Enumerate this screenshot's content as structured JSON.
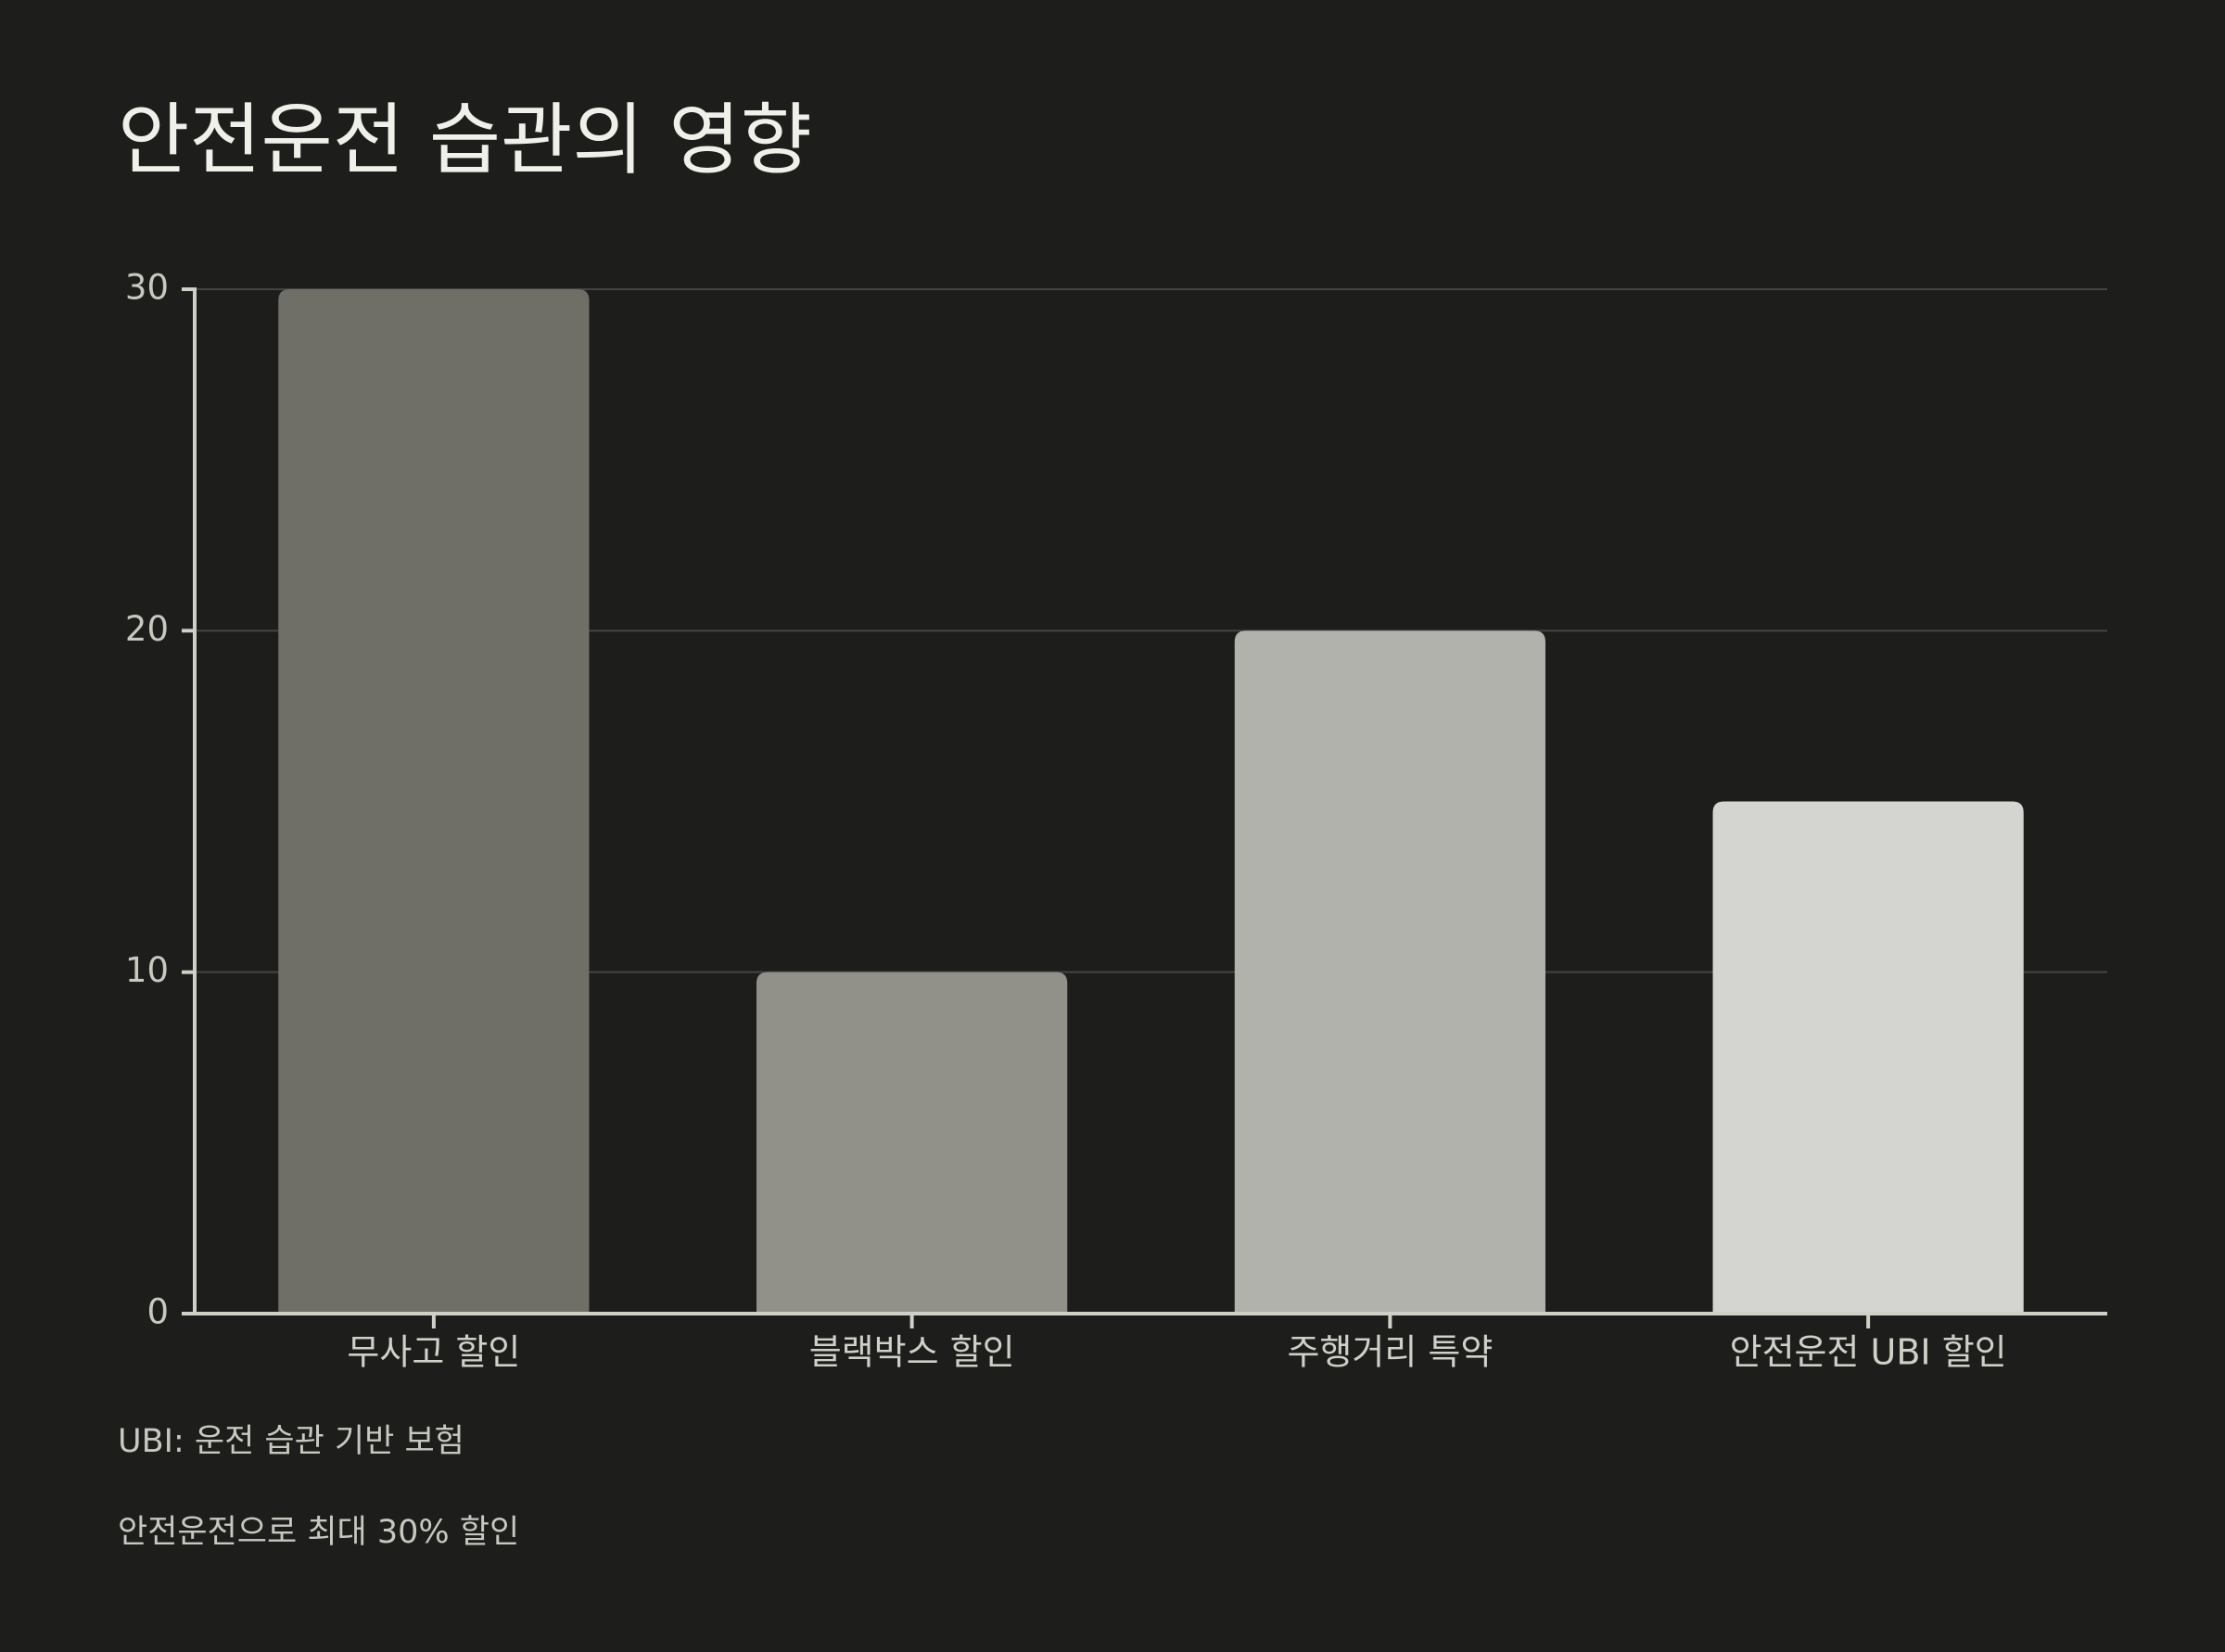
{
  "chart_data": {
    "type": "bar",
    "title": "안전운전 습관의 영향",
    "categories": [
      "무사고 할인",
      "블랙박스 할인",
      "주행거리 특약",
      "안전운전 UBI 할인"
    ],
    "values": [
      30,
      10,
      20,
      15
    ],
    "colors": [
      "#6f6f67",
      "#91918a",
      "#b1b2ac",
      "#d4d5d0"
    ],
    "ylim": [
      0,
      30
    ],
    "yticks": [
      0,
      10,
      20,
      30
    ],
    "grid": true,
    "annotations": [
      "UBI: 운전 습관 기반 보험",
      "안전운전으로 최대 30% 할인"
    ]
  }
}
